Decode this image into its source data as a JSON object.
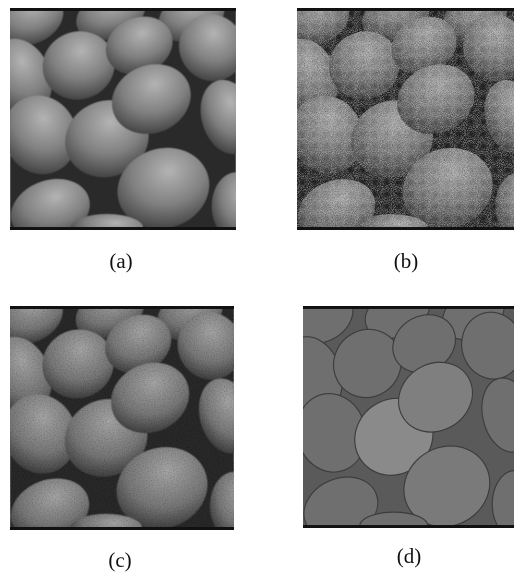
{
  "figure": {
    "panels": [
      {
        "id": "a",
        "caption": "(a)"
      },
      {
        "id": "b",
        "caption": "(b)"
      },
      {
        "id": "c",
        "caption": "(c)"
      },
      {
        "id": "d",
        "caption": "(d)"
      }
    ],
    "colors": {
      "background": "#ffffff",
      "border": "#111111",
      "egg_a": "#7a7a7a",
      "egg_d": "#6f6f6f",
      "shadow": "#262626"
    }
  }
}
